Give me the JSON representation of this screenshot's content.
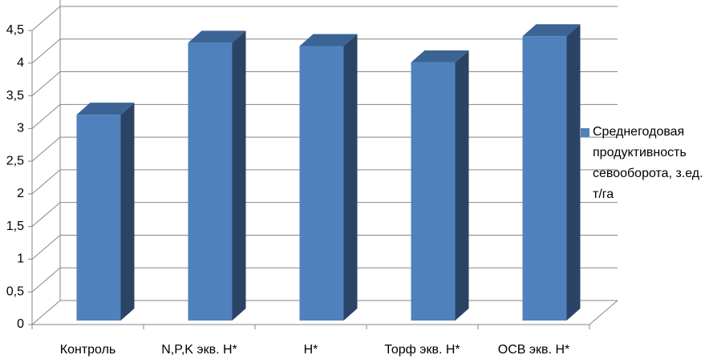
{
  "chart_data": {
    "type": "bar3d",
    "categories": [
      "Контроль",
      "N,P,K экв. Н*",
      "Н*",
      "Торф экв. Н*",
      "ОСВ экв. Н*"
    ],
    "series": [
      {
        "name": "Среднегодовая продуктивность севооборота, з.ед. т/га",
        "color": "#4f81bd",
        "values": [
          3.15,
          4.25,
          4.2,
          3.95,
          4.35
        ]
      }
    ],
    "ylim": [
      0,
      4.5
    ],
    "yticks": [
      0,
      {
        "value": 0.5,
        "label": "0,5"
      },
      1,
      {
        "value": 1.5,
        "label": "1,5"
      },
      2,
      {
        "value": 2.5,
        "label": "2,5"
      },
      3,
      {
        "value": 3.5,
        "label": "3,5"
      },
      4,
      {
        "value": 4.5,
        "label": "4,5"
      }
    ],
    "grid": true,
    "legend": "right"
  }
}
